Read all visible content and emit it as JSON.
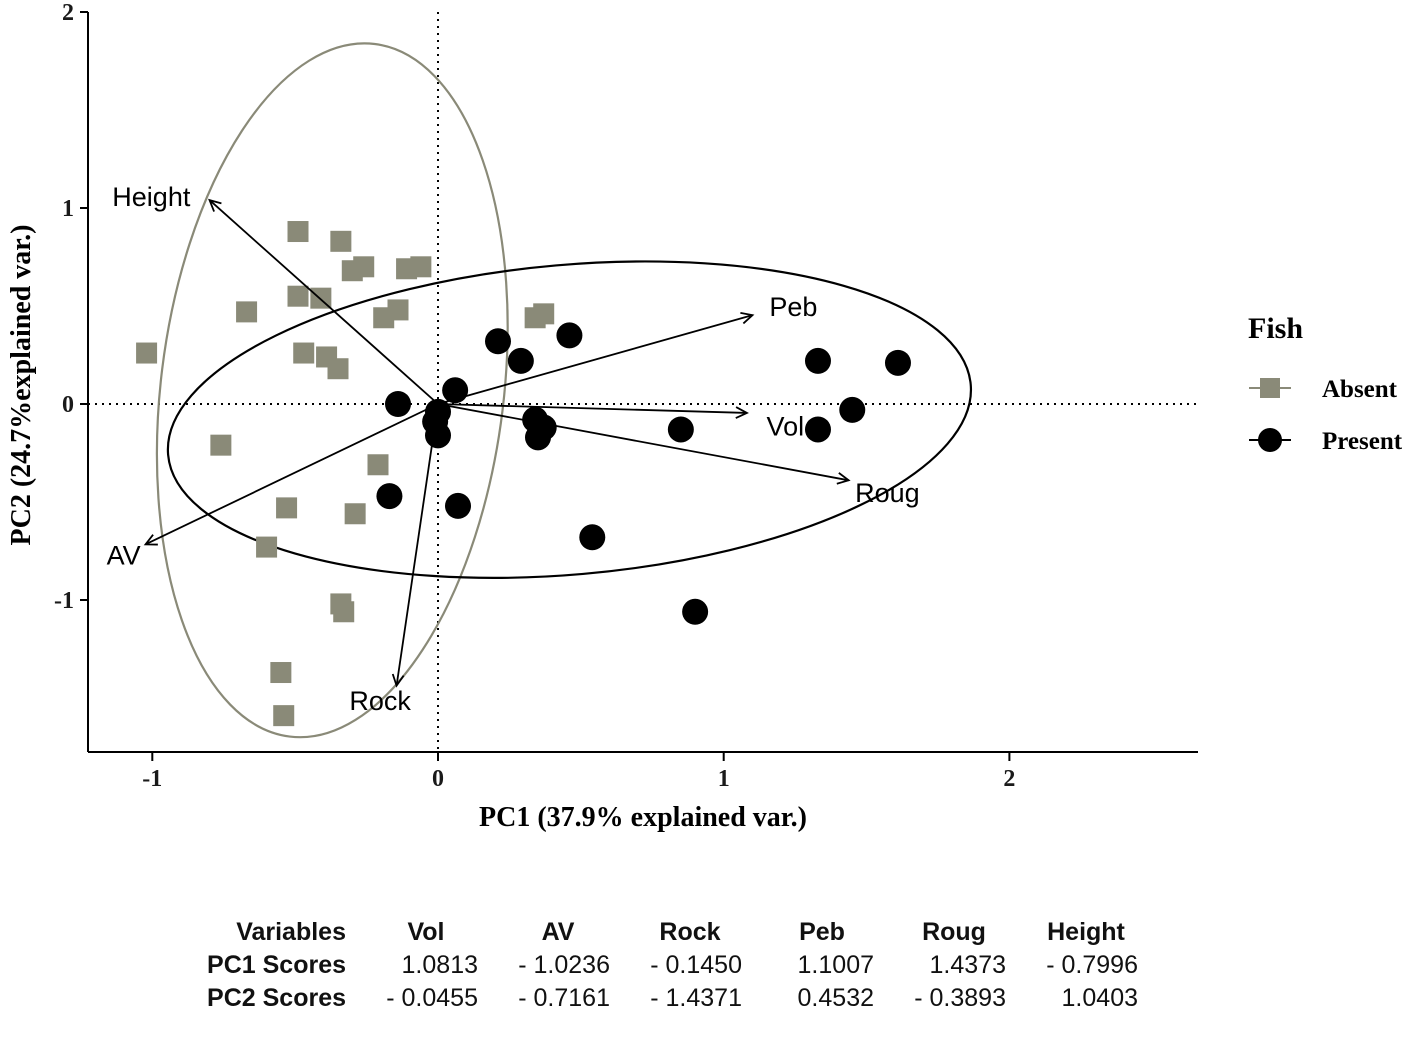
{
  "chart_data": {
    "type": "scatter",
    "subtype": "pca-biplot",
    "title": "",
    "xlabel": "PC1 (37.9% explained var.)",
    "ylabel": "PC2 (24.7%explained var.)",
    "xlim": [
      -1.225,
      2.67
    ],
    "ylim": [
      -1.775,
      2.0
    ],
    "xticks": [
      -1,
      0,
      1,
      2
    ],
    "yticks": [
      -1,
      0,
      1,
      2
    ],
    "grid": "dotted zero reference lines only",
    "legend": {
      "title": "Fish",
      "position": "right",
      "items": [
        {
          "label": "Absent",
          "marker": "square",
          "color": "#8a8a78"
        },
        {
          "label": "Present",
          "marker": "circle",
          "color": "#000000"
        }
      ]
    },
    "series": [
      {
        "name": "Absent",
        "marker": "square",
        "color": "#8a8a78",
        "points": [
          [
            -1.02,
            0.26
          ],
          [
            -0.76,
            -0.21
          ],
          [
            -0.67,
            0.47
          ],
          [
            -0.49,
            0.88
          ],
          [
            -0.34,
            0.83
          ],
          [
            -0.49,
            0.55
          ],
          [
            -0.41,
            0.54
          ],
          [
            -0.3,
            0.68
          ],
          [
            -0.26,
            0.7
          ],
          [
            -0.11,
            0.69
          ],
          [
            -0.06,
            0.7
          ],
          [
            -0.19,
            0.44
          ],
          [
            -0.14,
            0.48
          ],
          [
            -0.47,
            0.26
          ],
          [
            -0.39,
            0.24
          ],
          [
            -0.35,
            0.18
          ],
          [
            0.34,
            0.44
          ],
          [
            0.37,
            0.46
          ],
          [
            -0.21,
            -0.31
          ],
          [
            -0.53,
            -0.53
          ],
          [
            -0.29,
            -0.56
          ],
          [
            -0.6,
            -0.73
          ],
          [
            -0.34,
            -1.02
          ],
          [
            -0.33,
            -1.06
          ],
          [
            -0.55,
            -1.37
          ],
          [
            -0.54,
            -1.59
          ]
        ]
      },
      {
        "name": "Present",
        "marker": "circle",
        "color": "#000000",
        "points": [
          [
            0.21,
            0.32
          ],
          [
            0.29,
            0.22
          ],
          [
            0.46,
            0.35
          ],
          [
            0.06,
            0.07
          ],
          [
            -0.14,
            0.0
          ],
          [
            0.0,
            -0.04
          ],
          [
            -0.01,
            -0.09
          ],
          [
            0.0,
            -0.16
          ],
          [
            0.34,
            -0.08
          ],
          [
            0.37,
            -0.12
          ],
          [
            0.35,
            -0.17
          ],
          [
            0.85,
            -0.13
          ],
          [
            1.33,
            0.22
          ],
          [
            1.61,
            0.21
          ],
          [
            1.33,
            -0.13
          ],
          [
            1.45,
            -0.03
          ],
          [
            -0.17,
            -0.47
          ],
          [
            0.07,
            -0.52
          ],
          [
            0.54,
            -0.68
          ],
          [
            0.9,
            -1.06
          ]
        ]
      }
    ],
    "loadings": [
      {
        "name": "Vol",
        "x": 1.0813,
        "y": -0.0455,
        "label": [
          1.15,
          -0.16
        ]
      },
      {
        "name": "AV",
        "x": -1.0236,
        "y": -0.7161,
        "label": [
          -1.16,
          -0.82
        ]
      },
      {
        "name": "Rock",
        "x": -0.145,
        "y": -1.4371,
        "label": [
          -0.31,
          -1.56
        ]
      },
      {
        "name": "Peb",
        "x": 1.1007,
        "y": 0.4532,
        "label": [
          1.16,
          0.45
        ]
      },
      {
        "name": "Roug",
        "x": 1.4373,
        "y": -0.3893,
        "label": [
          1.46,
          -0.5
        ]
      },
      {
        "name": "Height",
        "x": -0.7996,
        "y": 1.0403,
        "label": [
          -1.14,
          1.01
        ]
      }
    ],
    "ellipses": [
      {
        "name": "absent-ellipse",
        "cx": -0.37,
        "cy": 0.07,
        "rx": 0.6,
        "ry": 1.78,
        "angle": 7,
        "color": "#8a8a78"
      },
      {
        "name": "present-ellipse",
        "cx": 0.46,
        "cy": -0.08,
        "rx": 1.41,
        "ry": 0.79,
        "angle": -5,
        "color": "#000000"
      }
    ]
  },
  "table": {
    "headers": [
      "Variables",
      "Vol",
      "AV",
      "Rock",
      "Peb",
      "Roug",
      "Height"
    ],
    "rows": [
      {
        "label": "PC1 Scores",
        "values": [
          "1.0813",
          "- 1.0236",
          "- 0.1450",
          "1.1007",
          "1.4373",
          "- 0.7996"
        ]
      },
      {
        "label": "PC2 Scores",
        "values": [
          "- 0.0455",
          "- 0.7161",
          "- 1.4371",
          "0.4532",
          "- 0.3893",
          "1.0403"
        ]
      }
    ]
  },
  "colors": {
    "absent": "#8a8a78",
    "present": "#000000",
    "axis": "#000000",
    "background": "#ffffff"
  }
}
